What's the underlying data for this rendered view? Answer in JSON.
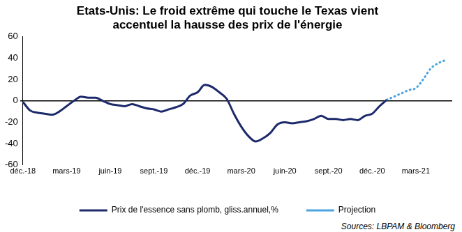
{
  "chart_data": {
    "type": "line",
    "title": [
      "Etats-Unis: Le froid extrême qui touche le Texas vient",
      "accentuel la hausse des prix de l'énergie"
    ],
    "note": "Sources: LBPAM & Bloomberg",
    "categories": [
      "déc.-18",
      null,
      null,
      null,
      null,
      null,
      "mars-19",
      null,
      null,
      null,
      null,
      null,
      "juin-19",
      null,
      null,
      null,
      null,
      null,
      "sept.-19",
      null,
      null,
      null,
      null,
      null,
      "déc.-19",
      null,
      null,
      null,
      null,
      null,
      "mars-20",
      null,
      null,
      null,
      null,
      null,
      "juin-20",
      null,
      null,
      null,
      null,
      null,
      "sept.-20",
      null,
      null,
      null,
      null,
      null,
      "déc.-20",
      null,
      null,
      null,
      null,
      null,
      "mars-21",
      null,
      null,
      null,
      null,
      null
    ],
    "series": [
      {
        "name": "Prix de l'essence sans plomb, gliss.annuel,%",
        "color": "#1c2a6b",
        "line_style": "solid",
        "values": [
          -1,
          -9,
          -11,
          -12,
          -13,
          -10,
          -5,
          0,
          4,
          3,
          3,
          0,
          -3,
          -4,
          -5,
          -3,
          -5,
          -7,
          -8,
          -10,
          -8,
          -6,
          -3,
          5,
          8,
          15,
          13,
          8,
          2,
          -12,
          -24,
          -33,
          -38,
          -35,
          -30,
          -22,
          -20,
          -21,
          -20,
          -19,
          -17,
          -14,
          -17,
          -17,
          -18,
          -17,
          -18,
          -14,
          -12,
          -5,
          1,
          null,
          null,
          null,
          null,
          null,
          null,
          null,
          null,
          null
        ]
      },
      {
        "name": "Projection",
        "color": "#4aa3df",
        "line_style": "dotted",
        "values": [
          null,
          null,
          null,
          null,
          null,
          null,
          null,
          null,
          null,
          null,
          null,
          null,
          null,
          null,
          null,
          null,
          null,
          null,
          null,
          null,
          null,
          null,
          null,
          null,
          null,
          null,
          null,
          null,
          null,
          null,
          null,
          null,
          null,
          null,
          null,
          null,
          null,
          null,
          null,
          null,
          null,
          null,
          null,
          null,
          null,
          null,
          null,
          null,
          null,
          null,
          1,
          4,
          7,
          10,
          12,
          20,
          30,
          35,
          38,
          null
        ]
      }
    ],
    "ylim": [
      -60,
      60
    ],
    "yticks": [
      -60,
      -40,
      -20,
      0,
      20,
      40,
      60
    ],
    "grid": false,
    "legend": "bottom"
  }
}
